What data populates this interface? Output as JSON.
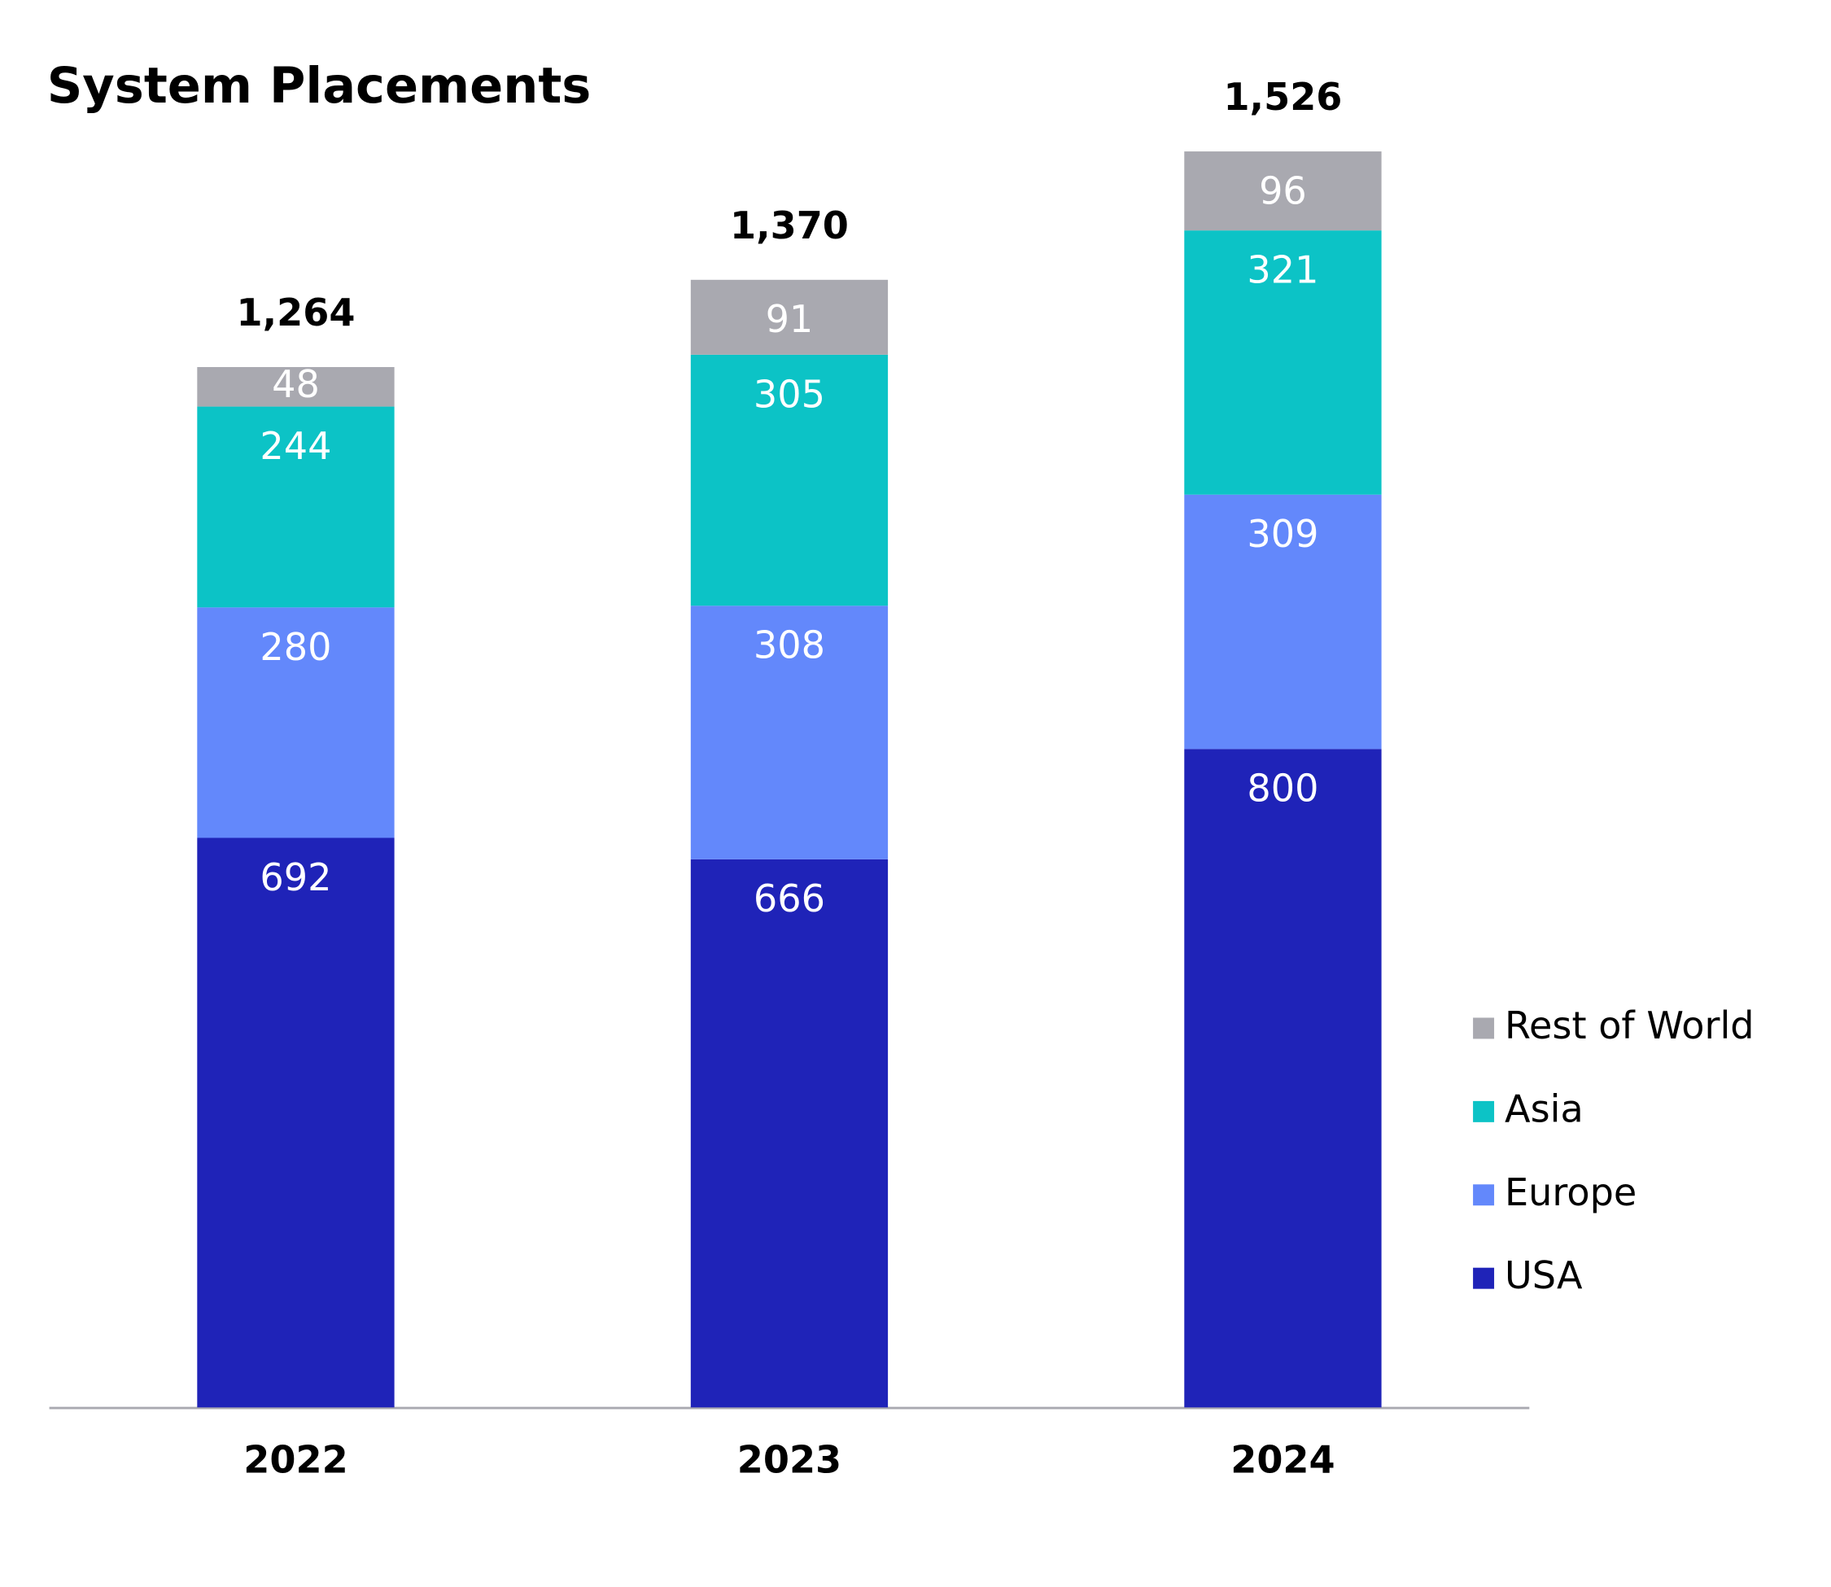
{
  "chart_data": {
    "type": "stacked-bar",
    "title": "System Placements",
    "categories": [
      "2022",
      "2023",
      "2024"
    ],
    "series": [
      {
        "name": "USA",
        "color": "#1f23b8",
        "values": [
          692,
          666,
          800
        ]
      },
      {
        "name": "Europe",
        "color": "#6388fb",
        "values": [
          280,
          308,
          309
        ]
      },
      {
        "name": "Asia",
        "color": "#0cc3c6",
        "values": [
          244,
          305,
          321
        ]
      },
      {
        "name": "Rest of World",
        "color": "#a9a9b0",
        "values": [
          48,
          91,
          96
        ]
      }
    ],
    "totals": {
      "values": [
        1264,
        1370,
        1526
      ],
      "value_labels": [
        "1,264",
        "1,370",
        "1,526"
      ]
    },
    "legend": "right"
  }
}
